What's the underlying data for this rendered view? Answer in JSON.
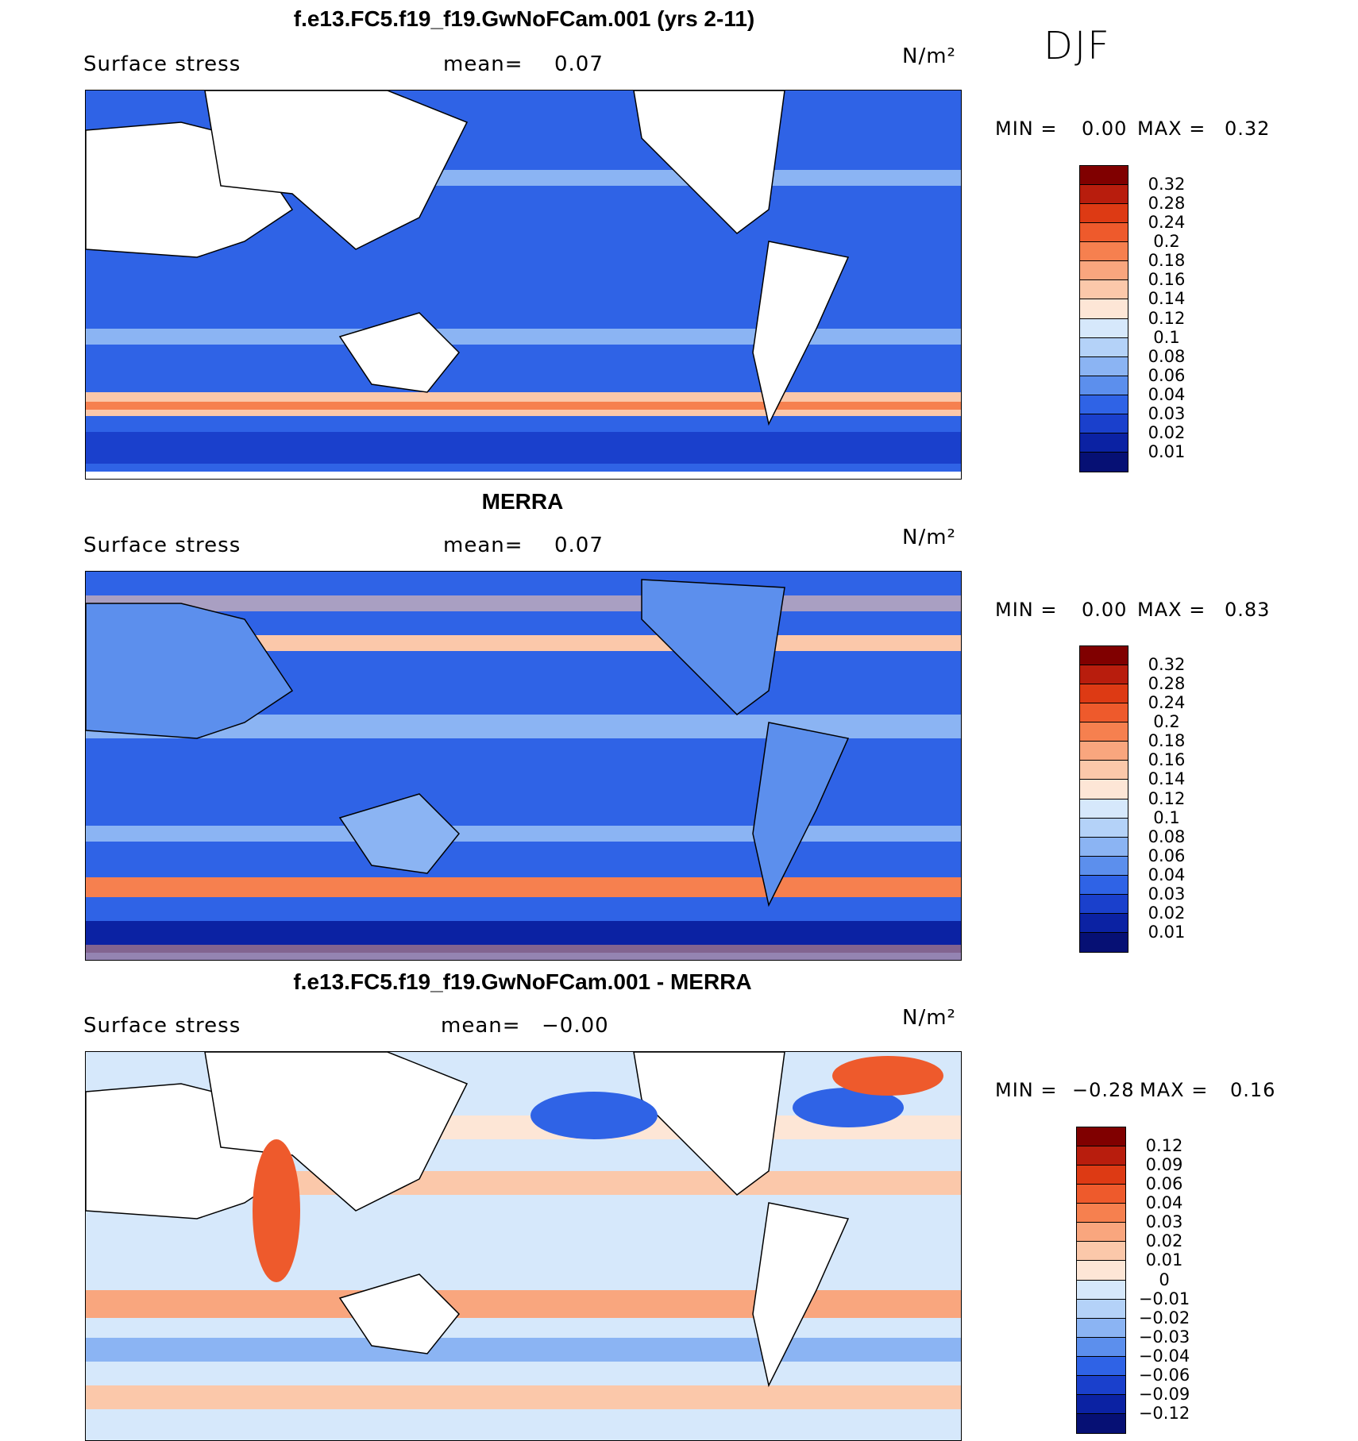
{
  "season": "DJF",
  "panels": [
    {
      "title": "f.e13.FC5.f19_f19.GwNoFCam.001 (yrs 2-11)",
      "variable": "Surface stress",
      "mean_label": "mean=",
      "mean_value": "0.07",
      "units": "N/m²",
      "min_label": "MIN =",
      "min_value": "0.00",
      "max_label": "MAX =",
      "max_value": "0.32",
      "colorbar_ticks": [
        "0.32",
        "0.28",
        "0.24",
        "0.2",
        "0.18",
        "0.16",
        "0.14",
        "0.12",
        "0.1",
        "0.08",
        "0.06",
        "0.04",
        "0.03",
        "0.02",
        "0.01"
      ],
      "colorbar_colors": [
        "#800000",
        "#b81d0d",
        "#dd3a14",
        "#ee5a2c",
        "#f6804f",
        "#f9a67e",
        "#fbc8aa",
        "#fde6d6",
        "#d6e8fb",
        "#b4d2f8",
        "#8bb4f3",
        "#5c8fed",
        "#2f63e6",
        "#1a40cc",
        "#0b22a3",
        "#061074"
      ]
    },
    {
      "title": "MERRA",
      "variable": "Surface stress",
      "mean_label": "mean=",
      "mean_value": "0.07",
      "units": "N/m²",
      "min_label": "MIN =",
      "min_value": "0.00",
      "max_label": "MAX =",
      "max_value": "0.83",
      "colorbar_ticks": [
        "0.32",
        "0.28",
        "0.24",
        "0.2",
        "0.18",
        "0.16",
        "0.14",
        "0.12",
        "0.1",
        "0.08",
        "0.06",
        "0.04",
        "0.03",
        "0.02",
        "0.01"
      ],
      "colorbar_colors": [
        "#800000",
        "#b81d0d",
        "#dd3a14",
        "#ee5a2c",
        "#f6804f",
        "#f9a67e",
        "#fbc8aa",
        "#fde6d6",
        "#d6e8fb",
        "#b4d2f8",
        "#8bb4f3",
        "#5c8fed",
        "#2f63e6",
        "#1a40cc",
        "#0b22a3",
        "#061074"
      ]
    },
    {
      "title": "f.e13.FC5.f19_f19.GwNoFCam.001 - MERRA",
      "variable": "Surface stress",
      "mean_label": "mean=",
      "mean_value": "−0.00",
      "units": "N/m²",
      "min_label": "MIN =",
      "min_value": "−0.28",
      "max_label": "MAX =",
      "max_value": "0.16",
      "colorbar_ticks": [
        "0.12",
        "0.09",
        "0.06",
        "0.04",
        "0.03",
        "0.02",
        "0.01",
        "0",
        "−0.01",
        "−0.02",
        "−0.03",
        "−0.04",
        "−0.06",
        "−0.09",
        "−0.12"
      ],
      "colorbar_colors": [
        "#800000",
        "#b81d0d",
        "#dd3a14",
        "#ee5a2c",
        "#f6804f",
        "#f9a67e",
        "#fbc8aa",
        "#fde6d6",
        "#d6e8fb",
        "#b4d2f8",
        "#8bb4f3",
        "#5c8fed",
        "#2f63e6",
        "#1a40cc",
        "#0b22a3",
        "#061074"
      ]
    }
  ]
}
